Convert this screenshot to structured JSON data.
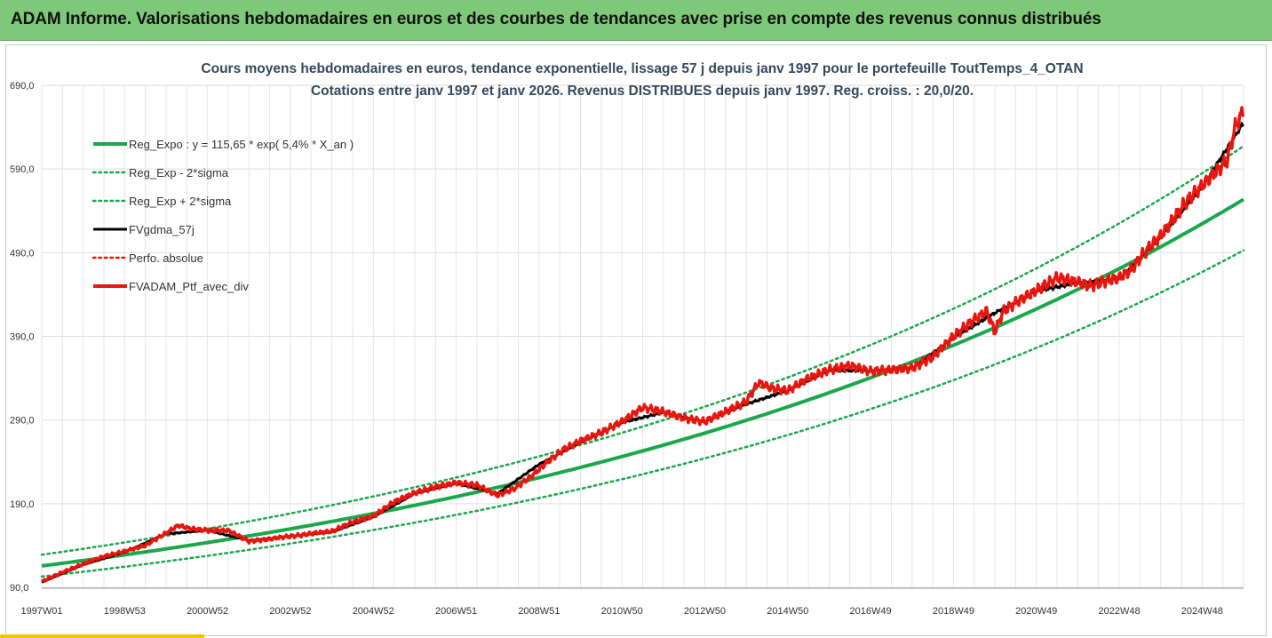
{
  "banner": {
    "title": "ADAM Informe. Valorisations hebdomadaires en euros et des courbes de tendances avec prise en compte des revenus connus distribués"
  },
  "colors": {
    "green": "#1aa84a",
    "black": "#000000",
    "red": "#e8160e",
    "banner": "#7ec87a",
    "grid": "#dddddd"
  },
  "chart_data": {
    "type": "line",
    "title": "Cours moyens hebdomadaires  en euros, tendance exponentielle, lissage 57 j depuis janv 1997 pour le portefeuille ToutTemps_4_OTAN",
    "subtitle": "Cotations entre janv 1997 et janv 2026. Revenus DISTRIBUES depuis janv 1997. Reg. croiss. : 20,0/20.",
    "ylim": [
      90,
      690
    ],
    "y_ticks": [
      "90,0",
      "190,0",
      "290,0",
      "390,0",
      "490,0",
      "590,0",
      "690,0"
    ],
    "x_ticks": [
      "1997W01",
      "1998W53",
      "2000W52",
      "2002W52",
      "2004W52",
      "2006W51",
      "2008W51",
      "2010W50",
      "2012W50",
      "2014W50",
      "2016W49",
      "2018W49",
      "2020W49",
      "2022W48",
      "2024W48"
    ],
    "x_range_years": [
      1997.0,
      2026.0
    ],
    "legend": [
      {
        "label": "Reg_Expo : y = 115,65 * exp( 5,4% *  X_an )",
        "color": "#1aa84a",
        "style": "solid",
        "width": 4
      },
      {
        "label": "Reg_Exp - 2*sigma",
        "color": "#1aa84a",
        "style": "dotted",
        "width": 2.5
      },
      {
        "label": "Reg_Exp + 2*sigma",
        "color": "#1aa84a",
        "style": "dotted",
        "width": 2.5
      },
      {
        "label": "FVgdma_57j",
        "color": "#000000",
        "style": "solid",
        "width": 3
      },
      {
        "label": "Perfo. absolue",
        "color": "#e8160e",
        "style": "dotted",
        "width": 2.5
      },
      {
        "label": "FVADAM_Ptf_avec_div",
        "color": "#e8160e",
        "style": "solid",
        "width": 4
      }
    ],
    "regression": {
      "a": 115.65,
      "rate": 0.054,
      "lower_factor": 0.89,
      "upper_factor": 1.115
    },
    "series": [
      {
        "name": "FVADAM_Ptf_avec_div",
        "x": [
          1997.0,
          1997.5,
          1998.0,
          1998.5,
          1999.0,
          1999.5,
          2000.0,
          2000.3,
          2000.6,
          2001.0,
          2001.5,
          2002.0,
          2002.4,
          2002.8,
          2003.2,
          2003.6,
          2004.0,
          2004.5,
          2005.0,
          2005.5,
          2006.0,
          2006.5,
          2007.0,
          2007.5,
          2008.0,
          2008.4,
          2008.8,
          2009.2,
          2009.6,
          2010.0,
          2010.5,
          2011.0,
          2011.5,
          2012.0,
          2012.5,
          2013.0,
          2013.5,
          2014.0,
          2014.3,
          2014.6,
          2015.0,
          2015.5,
          2016.0,
          2016.5,
          2017.0,
          2017.5,
          2018.0,
          2018.5,
          2019.0,
          2019.5,
          2019.8,
          2020.0,
          2020.2,
          2020.5,
          2021.0,
          2021.5,
          2022.0,
          2022.3,
          2022.6,
          2023.0,
          2023.3,
          2023.6,
          2024.0,
          2024.3,
          2024.6,
          2025.0,
          2025.3,
          2025.6,
          2025.8,
          2026.0
        ],
        "values": [
          97,
          108,
          118,
          127,
          133,
          140,
          155,
          164,
          160,
          158,
          158,
          145,
          147,
          150,
          152,
          155,
          157,
          168,
          175,
          192,
          203,
          210,
          215,
          212,
          200,
          208,
          222,
          240,
          255,
          265,
          275,
          288,
          305,
          300,
          292,
          288,
          300,
          312,
          335,
          328,
          325,
          340,
          350,
          355,
          348,
          350,
          352,
          365,
          390,
          410,
          420,
          395,
          420,
          430,
          445,
          460,
          455,
          450,
          455,
          460,
          470,
          490,
          510,
          530,
          550,
          570,
          585,
          600,
          640,
          660
        ]
      },
      {
        "name": "FVgdma_57j",
        "x": [
          1997.0,
          1998.0,
          1999.0,
          2000.0,
          2001.0,
          2002.0,
          2003.0,
          2004.0,
          2005.0,
          2006.0,
          2007.0,
          2008.0,
          2009.0,
          2010.0,
          2011.0,
          2012.0,
          2013.0,
          2014.0,
          2015.0,
          2016.0,
          2017.0,
          2018.0,
          2019.0,
          2020.0,
          2021.0,
          2022.0,
          2023.0,
          2024.0,
          2025.0,
          2025.8,
          2026.0
        ],
        "values": [
          96,
          117,
          132,
          154,
          158,
          146,
          151,
          156,
          174,
          202,
          214,
          202,
          237,
          263,
          287,
          299,
          288,
          309,
          325,
          349,
          349,
          352,
          388,
          418,
          444,
          454,
          459,
          508,
          568,
          630,
          645
        ]
      }
    ]
  }
}
